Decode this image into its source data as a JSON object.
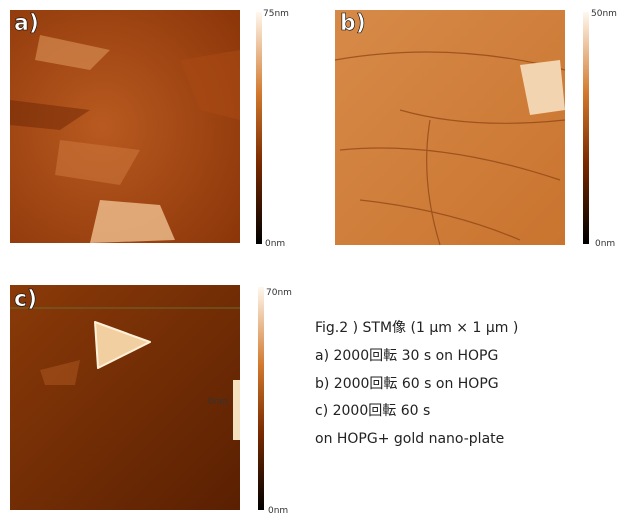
{
  "panels": [
    {
      "label": "a)",
      "scale_max": "75nm",
      "scale_min": "0nm"
    },
    {
      "label": "b)",
      "scale_max": "50nm",
      "scale_min": "0nm"
    },
    {
      "label": "c)",
      "scale_max": "70nm",
      "scale_min": "0nm",
      "overlay": "0nm"
    }
  ],
  "caption": {
    "title": "Fig.2 ) STM像 (1 μm × 1 μm )",
    "lines": [
      "a)  2000回転  30 s on HOPG",
      "b)  2000回転  60 s on HOPG",
      "c)  2000回転  60 s",
      "on HOPG+ gold nano-plate"
    ]
  }
}
